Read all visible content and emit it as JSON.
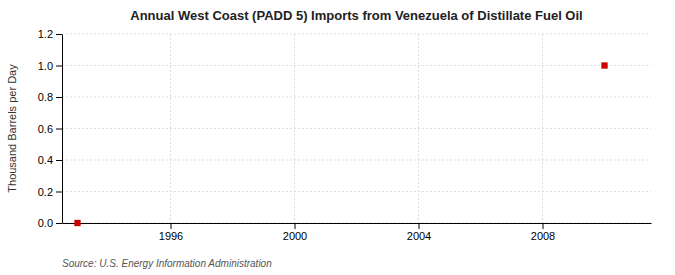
{
  "chart_data": {
    "type": "scatter",
    "title": "Annual West Coast (PADD 5) Imports from Venezuela of Distillate Fuel Oil",
    "y_label": "Thousand Barrels per Day",
    "annotation": "Source: U.S. Energy Information Administration",
    "x": [
      1993,
      2010
    ],
    "values": [
      0.0,
      1.0
    ],
    "color": "#cc0000",
    "marker": "square",
    "xlim": [
      1992.5,
      2011.5
    ],
    "xticks": [
      1996,
      2000,
      2004,
      2008
    ],
    "ylim": [
      0.0,
      1.2
    ],
    "yticks": [
      {
        "value": 0.0,
        "label": "0.0"
      },
      0.2,
      0.4,
      0.6,
      0.8,
      {
        "value": 1.0,
        "label": "1.0"
      },
      1.2
    ],
    "grid": true
  }
}
